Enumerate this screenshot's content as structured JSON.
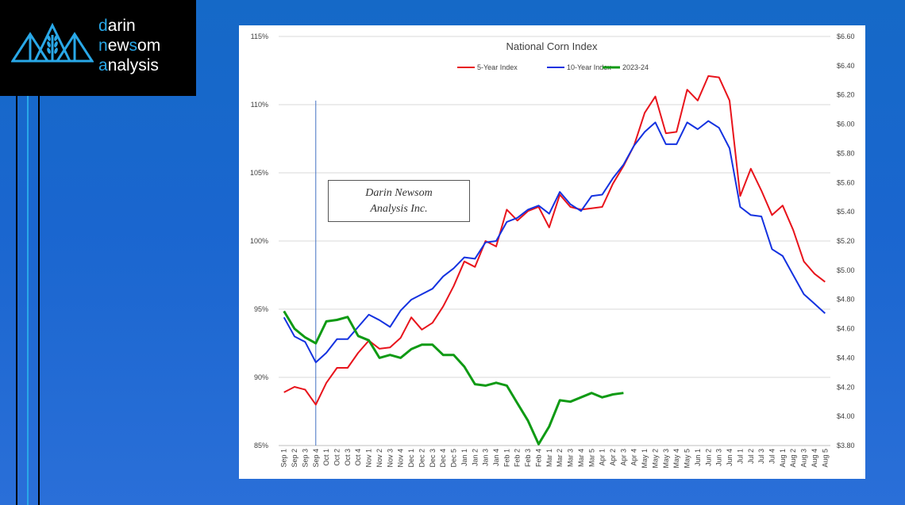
{
  "branding": {
    "logo_lines": [
      {
        "first": "d",
        "rest": "arin"
      },
      {
        "first": "n",
        "rest": "ew",
        "mid": "s",
        "tail": "om"
      },
      {
        "first": "a",
        "rest": "nalysis"
      }
    ],
    "watermark_line1": "Darin Newsom",
    "watermark_line2": "Analysis Inc."
  },
  "colors": {
    "background": "#1a66cf",
    "five_year": "#e8141c",
    "ten_year": "#1432e0",
    "current": "#0f9a14",
    "accent": "#29a8e8"
  },
  "chart_data": {
    "type": "line",
    "title": "National Corn Index",
    "legend_position": "top-center",
    "grid": true,
    "x": [
      "Sep 1",
      "Sep 2",
      "Sep 3",
      "Sep 4",
      "Oct 1",
      "Oct 2",
      "Oct 3",
      "Oct 4",
      "Nov 1",
      "Nov 2",
      "Nov 3",
      "Nov 4",
      "Dec 1",
      "Dec 2",
      "Dec 3",
      "Dec 4",
      "Dec 5",
      "Jan 1",
      "Jan 2",
      "Jan 3",
      "Jan 4",
      "Feb 1",
      "Feb 2",
      "Feb 3",
      "Feb 4",
      "Mar 1",
      "Mar 2",
      "Mar 3",
      "Mar 4",
      "Mar 5",
      "Apr 1",
      "Apr 2",
      "Apr 3",
      "Apr 4",
      "May 1",
      "May 2",
      "May 3",
      "May 4",
      "May 5",
      "Jun 1",
      "Jun 2",
      "Jun 3",
      "Jun 4",
      "Jul 1",
      "Jul 2",
      "Jul 3",
      "Jul 4",
      "Aug 1",
      "Aug 2",
      "Aug 3",
      "Aug 4",
      "Aug 5"
    ],
    "y_left": {
      "ticks": [
        "85%",
        "90%",
        "95%",
        "100%",
        "105%",
        "110%",
        "115%"
      ],
      "min": 85,
      "max": 115,
      "step": 5
    },
    "y_right": {
      "ticks": [
        "$3.80",
        "$4.00",
        "$4.20",
        "$4.40",
        "$4.60",
        "$4.80",
        "$5.00",
        "$5.20",
        "$5.40",
        "$5.60",
        "$5.80",
        "$6.00",
        "$6.20",
        "$6.40",
        "$6.60"
      ],
      "min": 3.8,
      "max": 6.6,
      "step": 0.2
    },
    "marker_line_category": "Sep 4",
    "series": [
      {
        "name": "5-Year Index",
        "axis": "left",
        "color": "#e8141c",
        "values": [
          88.9,
          89.3,
          89.1,
          88.0,
          89.6,
          90.7,
          90.7,
          91.8,
          92.7,
          92.1,
          92.2,
          92.9,
          94.4,
          93.5,
          94.0,
          95.2,
          96.7,
          98.5,
          98.1,
          100.0,
          99.6,
          102.3,
          101.5,
          102.2,
          102.5,
          101.0,
          103.4,
          102.5,
          102.3,
          102.4,
          102.5,
          104.2,
          105.5,
          107.0,
          109.4,
          110.6,
          107.9,
          108.0,
          111.1,
          110.3,
          112.1,
          112.0,
          110.3,
          103.3,
          105.3,
          103.7,
          101.9,
          102.6,
          100.8,
          98.5,
          97.6,
          97.0
        ]
      },
      {
        "name": "10-Year Index",
        "axis": "left",
        "color": "#1432e0",
        "values": [
          94.4,
          93.0,
          92.6,
          91.1,
          91.8,
          92.8,
          92.8,
          93.7,
          94.6,
          94.2,
          93.7,
          94.9,
          95.7,
          96.1,
          96.5,
          97.4,
          98.0,
          98.8,
          98.7,
          99.9,
          100.0,
          101.4,
          101.7,
          102.3,
          102.6,
          102.0,
          103.6,
          102.7,
          102.2,
          103.3,
          103.4,
          104.6,
          105.6,
          107.0,
          108.0,
          108.7,
          107.1,
          107.1,
          108.7,
          108.2,
          108.8,
          108.3,
          106.8,
          102.5,
          101.9,
          101.8,
          99.4,
          98.9,
          97.5,
          96.1,
          95.4,
          94.7
        ]
      },
      {
        "name": "2023-24",
        "axis": "right",
        "color": "#0f9a14",
        "values": [
          4.72,
          4.6,
          4.54,
          4.5,
          4.65,
          4.66,
          4.68,
          4.55,
          4.52,
          4.4,
          4.42,
          4.4,
          4.46,
          4.49,
          4.49,
          4.42,
          4.42,
          4.34,
          4.22,
          4.21,
          4.23,
          4.21,
          4.09,
          3.97,
          3.81,
          3.93,
          4.11,
          4.1,
          4.13,
          4.16,
          4.13,
          4.15,
          4.16,
          null,
          null,
          null,
          null,
          null,
          null,
          null,
          null,
          null,
          null,
          null,
          null,
          null,
          null,
          null,
          null,
          null,
          null,
          null
        ]
      }
    ]
  }
}
